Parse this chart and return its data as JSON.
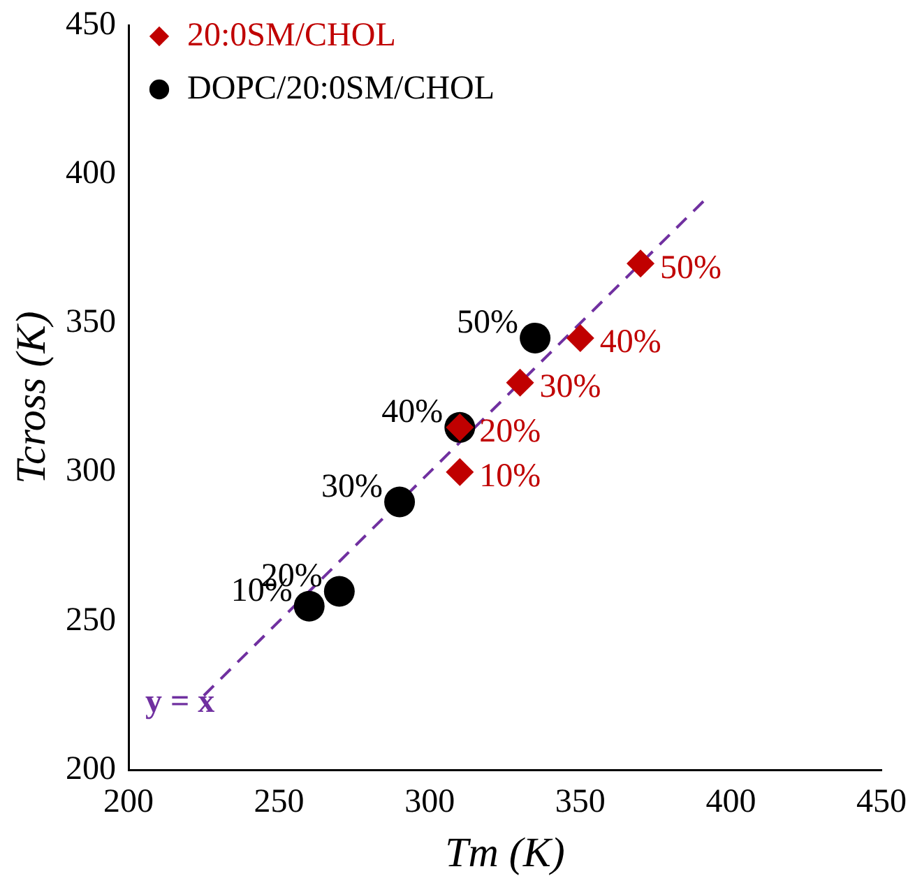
{
  "chart_data": {
    "type": "scatter",
    "xlabel": "Tm (K)",
    "ylabel": "Tcross (K)",
    "xlim": [
      200,
      450
    ],
    "ylim": [
      200,
      450
    ],
    "xticks": [
      200,
      250,
      300,
      350,
      400,
      450
    ],
    "yticks": [
      200,
      250,
      300,
      350,
      400,
      450
    ],
    "grid": false,
    "legend": "top left",
    "series": [
      {
        "name": "20:0SM/CHOL",
        "color": "#c00000",
        "marker": "diamond",
        "x": [
          310,
          310,
          330,
          350,
          370
        ],
        "values": [
          300,
          315,
          330,
          345,
          370
        ]
      },
      {
        "name": "DOPC/20:0SM/CHOL",
        "color": "#000000",
        "marker": "circle",
        "x": [
          260,
          270,
          290,
          310,
          335
        ],
        "values": [
          255,
          260,
          290,
          315,
          345
        ]
      },
      {
        "type": "line",
        "color": "#7030a0",
        "line_style": "dashed",
        "marker": "none",
        "x": [
          225,
          392
        ],
        "values": [
          225,
          392
        ]
      }
    ],
    "annotations": [
      {
        "text": "10%",
        "x": 310,
        "y": 300
      },
      {
        "text": "20%",
        "x": 310,
        "y": 315
      },
      {
        "text": "30%",
        "x": 330,
        "y": 330
      },
      {
        "text": "40%",
        "x": 350,
        "y": 345
      },
      {
        "text": "50%",
        "x": 370,
        "y": 370
      },
      {
        "text": "10%",
        "x": 260,
        "y": 255
      },
      {
        "text": "20%",
        "x": 270,
        "y": 260
      },
      {
        "text": "30%",
        "x": 290,
        "y": 290
      },
      {
        "text": "40%",
        "x": 310,
        "y": 315
      },
      {
        "text": "50%",
        "x": 335,
        "y": 345
      },
      "y = x"
    ]
  }
}
